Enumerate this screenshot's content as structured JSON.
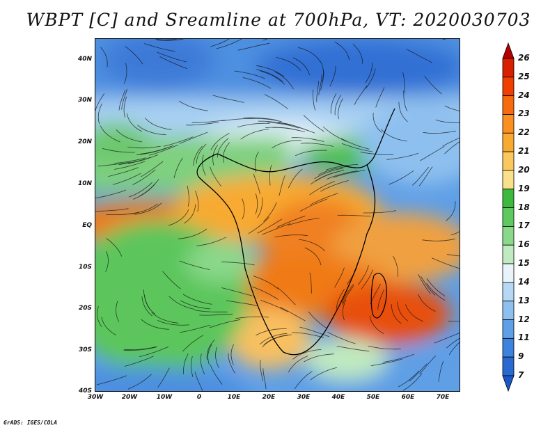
{
  "title": "WBPT [C] and Sreamline at 700hPa, VT: 2020030703",
  "footer": "GrADS: IGES/COLA",
  "map": {
    "lat_labels": [
      "40N",
      "30N",
      "20N",
      "10N",
      "EQ",
      "10S",
      "20S",
      "30S",
      "40S"
    ],
    "lon_labels": [
      "30W",
      "20W",
      "10W",
      "0",
      "10E",
      "20E",
      "30E",
      "40E",
      "50E",
      "60E",
      "70E"
    ],
    "lat_range": [
      -40,
      45
    ],
    "lon_range": [
      -30,
      75
    ]
  },
  "colorbar": {
    "levels": [
      "26",
      "25",
      "24",
      "23",
      "22",
      "21",
      "20",
      "19",
      "18",
      "17",
      "16",
      "15",
      "14",
      "13",
      "12",
      "11",
      "9",
      "7"
    ],
    "colors": [
      "#b50000",
      "#d81f00",
      "#f04000",
      "#f86a10",
      "#fb8f20",
      "#f8aa30",
      "#fbc860",
      "#fbe08c",
      "#3dba3d",
      "#60c860",
      "#8ad88a",
      "#c0eac0",
      "#e8f4fa",
      "#b7d8f5",
      "#8ec0ef",
      "#5e9fe6",
      "#3d82dc",
      "#2a6ad0",
      "#1a58c8"
    ]
  }
}
